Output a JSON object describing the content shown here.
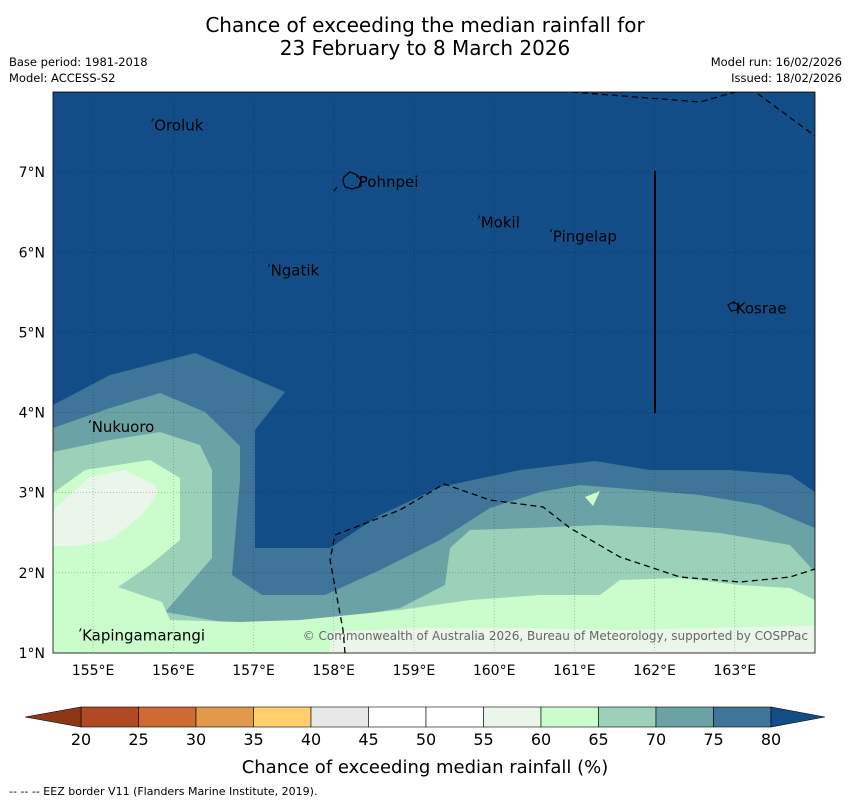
{
  "header": {
    "title_line1": "Chance of exceeding the median rainfall for",
    "title_line2": "23 February to 8 March 2026",
    "base_period": "Base period: 1981-2018",
    "model": "Model: ACCESS-S2",
    "model_run": "Model run: 16/02/2026",
    "issued": "Issued: 18/02/2026"
  },
  "map": {
    "extent": {
      "lon_min": 154.5,
      "lon_max": 164.0,
      "lat_min": 1.0,
      "lat_max": 8.0
    },
    "lon_ticks": [
      {
        "value": 155,
        "label": "155°E"
      },
      {
        "value": 156,
        "label": "156°E"
      },
      {
        "value": 157,
        "label": "157°E"
      },
      {
        "value": 158,
        "label": "158°E"
      },
      {
        "value": 159,
        "label": "159°E"
      },
      {
        "value": 160,
        "label": "160°E"
      },
      {
        "value": 161,
        "label": "161°E"
      },
      {
        "value": 162,
        "label": "162°E"
      },
      {
        "value": 163,
        "label": "163°E"
      }
    ],
    "lat_ticks": [
      {
        "value": 7,
        "label": "7°N"
      },
      {
        "value": 6,
        "label": "6°N"
      },
      {
        "value": 5,
        "label": "5°N"
      },
      {
        "value": 4,
        "label": "4°N"
      },
      {
        "value": 3,
        "label": "3°N"
      },
      {
        "value": 2,
        "label": "2°N"
      },
      {
        "value": 1,
        "label": "1°N"
      }
    ],
    "places": [
      {
        "name": "Oroluk",
        "lon": 155.75,
        "lat": 7.58
      },
      {
        "name": "Pohnpei",
        "lon": 158.3,
        "lat": 6.88
      },
      {
        "name": "Mokil",
        "lon": 159.82,
        "lat": 6.37
      },
      {
        "name": "Pingelap",
        "lon": 160.72,
        "lat": 6.2
      },
      {
        "name": "Ngatik",
        "lon": 157.2,
        "lat": 5.77
      },
      {
        "name": "Kosrae",
        "lon": 163.0,
        "lat": 5.3
      },
      {
        "name": "Nukuoro",
        "lon": 154.97,
        "lat": 3.82
      },
      {
        "name": "Kapingamarangi",
        "lon": 154.85,
        "lat": 1.22
      }
    ],
    "copyright": "© Commonwealth of Australia 2026, Bureau of Meteorology, supported by COSPPac"
  },
  "legend": {
    "tick_labels": [
      "20",
      "25",
      "30",
      "35",
      "40",
      "45",
      "50",
      "55",
      "60",
      "65",
      "70",
      "75",
      "80"
    ],
    "colors": [
      "#b14a22",
      "#cf6a30",
      "#e3994a",
      "#fecf6b",
      "#e8e8e8",
      "#ffffff",
      "#ffffff",
      "#eaf6ea",
      "#cbfccb",
      "#9bd1b9",
      "#6ba2a5",
      "#3f7598"
    ],
    "under_color": "#8e3716",
    "over_color": "#134d87",
    "label": "Chance of exceeding median rainfall (%)"
  },
  "footnote": "--  --  -- EEZ border V11 (Flanders Marine Institute, 2019)."
}
